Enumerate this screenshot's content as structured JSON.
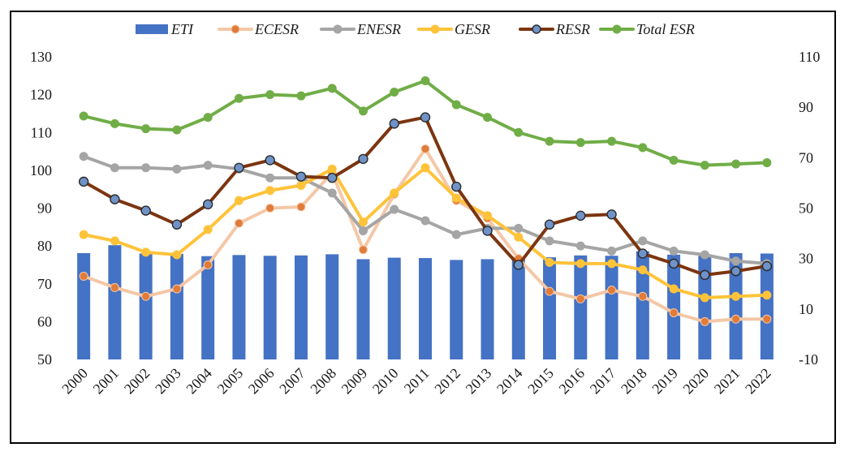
{
  "chart_data": {
    "type": "bar+line",
    "categories": [
      "2000",
      "2001",
      "2002",
      "2003",
      "2004",
      "2005",
      "2006",
      "2007",
      "2008",
      "2009",
      "2010",
      "2011",
      "2012",
      "2013",
      "2014",
      "2015",
      "2016",
      "2017",
      "2018",
      "2019",
      "2020",
      "2021",
      "2022"
    ],
    "left_axis": {
      "ylim": [
        50,
        130
      ],
      "ticks": [
        "50",
        "60",
        "70",
        "80",
        "90",
        "100",
        "110",
        "120",
        "130"
      ]
    },
    "right_axis": {
      "ylim": [
        -10,
        110
      ],
      "ticks": [
        "-10",
        "10",
        "30",
        "50",
        "70",
        "90",
        "110"
      ]
    },
    "grid": false,
    "legend_position": "top",
    "series": [
      {
        "name": "ETI",
        "kind": "bar",
        "axis": "left",
        "color": "#4472C4",
        "values": [
          78.1,
          80.2,
          78.0,
          77.9,
          77.3,
          77.6,
          77.4,
          77.5,
          77.8,
          76.5,
          76.9,
          76.8,
          76.3,
          76.5,
          77.1,
          77.0,
          77.5,
          77.4,
          78.6,
          77.7,
          77.4,
          78.1,
          78.0
        ]
      },
      {
        "name": "ECESR",
        "kind": "line",
        "axis": "right",
        "color": "#F4C7A6",
        "marker": "#E07B39",
        "values": [
          23,
          18.5,
          15,
          18,
          27.5,
          44,
          50,
          50.5,
          64,
          33.5,
          55.5,
          73.5,
          53,
          46,
          30,
          17,
          14,
          17.5,
          15,
          8.5,
          5,
          6,
          6
        ]
      },
      {
        "name": "ENESR",
        "kind": "line",
        "axis": "right",
        "color": "#A5A5A5",
        "marker": "#A5A5A5",
        "values": [
          70.5,
          66,
          66,
          65.5,
          67,
          65.5,
          62,
          62,
          56,
          41,
          49.5,
          45,
          39.5,
          42,
          42,
          37,
          35,
          33,
          37,
          33,
          31.5,
          29,
          28
        ]
      },
      {
        "name": "GESR",
        "kind": "line",
        "axis": "right",
        "color": "#FFC33A",
        "marker": "#FFC33A",
        "values": [
          39.5,
          37,
          32.5,
          31.5,
          41.5,
          53,
          57,
          59,
          65.5,
          44.5,
          56,
          66,
          54,
          47,
          38.5,
          28.5,
          28,
          28,
          25.5,
          18,
          14.5,
          15,
          15.5
        ]
      },
      {
        "name": "RESR",
        "kind": "line",
        "axis": "right",
        "color": "#7B3510",
        "marker": "#6F93C8",
        "values": [
          60.5,
          53.5,
          49,
          43.5,
          51.5,
          66,
          69,
          62.5,
          62,
          69.5,
          83.5,
          86,
          58.5,
          41,
          27.5,
          43.5,
          47,
          47.5,
          32,
          28,
          23.5,
          25,
          27
        ]
      },
      {
        "name": "Total ESR",
        "kind": "line",
        "axis": "right",
        "color": "#70AD47",
        "marker": "#70AD47",
        "values": [
          86.5,
          83.5,
          81.5,
          81,
          86,
          93.5,
          95,
          94.5,
          97.5,
          88.5,
          96,
          100.5,
          91,
          86,
          80,
          76.5,
          76,
          76.5,
          74,
          69,
          67,
          67.5,
          68
        ]
      }
    ]
  }
}
